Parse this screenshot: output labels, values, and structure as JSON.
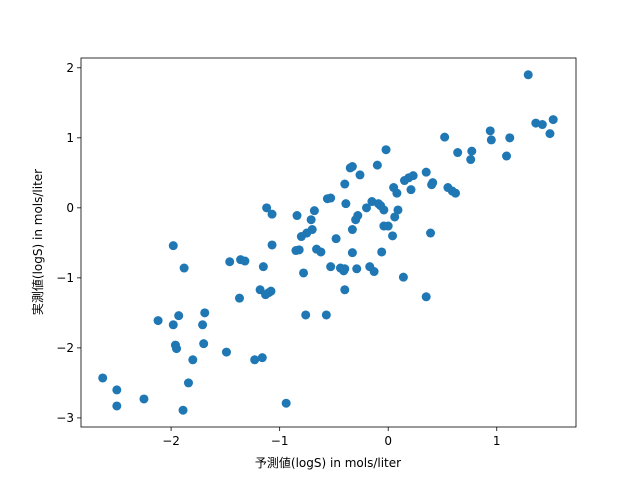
{
  "chart_data": {
    "type": "scatter",
    "xlabel": "予測値(logS) in mols/liter",
    "ylabel": "実測値(logS) in mols/liter",
    "color": "#1f77b4",
    "xlim": [
      -2.83,
      1.73
    ],
    "ylim": [
      -3.13,
      2.14
    ],
    "xticks": [
      {
        "value": -2,
        "label": "−2"
      },
      {
        "value": -1,
        "label": "−1"
      },
      0,
      1
    ],
    "yticks": [
      {
        "value": -3,
        "label": "−3"
      },
      {
        "value": -2,
        "label": "−2"
      },
      {
        "value": -1,
        "label": "−1"
      },
      0,
      1,
      2
    ],
    "x": [
      1.29,
      1.52,
      1.36,
      1.42,
      1.49,
      0.94,
      1.12,
      0.95,
      0.52,
      0.77,
      0.64,
      1.09,
      0.76,
      -0.02,
      -0.1,
      -0.33,
      -0.35,
      -0.26,
      0.35,
      0.19,
      0.23,
      0.41,
      0.4,
      0.55,
      0.59,
      0.62,
      0.15,
      0.05,
      0.08,
      0.21,
      -0.4,
      -0.53,
      -0.56,
      -0.39,
      -0.15,
      -0.07,
      -0.04,
      -0.09,
      0.09,
      -0.2,
      -0.68,
      -0.84,
      -0.28,
      -0.3,
      -0.71,
      -1.12,
      -1.07,
      0.06,
      -0.04,
      0.0,
      -0.33,
      -0.7,
      -0.75,
      -0.8,
      0.04,
      0.39,
      -0.48,
      -1.07,
      -1.98,
      -0.82,
      -0.85,
      -0.66,
      -0.62,
      -0.33,
      -0.06,
      -1.46,
      -1.36,
      -1.32,
      -1.88,
      -1.15,
      -0.53,
      -0.44,
      -0.4,
      -0.29,
      -0.17,
      -0.13,
      -0.41,
      -0.78,
      0.14,
      -1.18,
      -1.1,
      -1.08,
      -1.13,
      -0.4,
      -1.37,
      0.35,
      -1.69,
      -1.93,
      -0.76,
      -0.57,
      -2.12,
      -1.98,
      -1.71,
      -1.7,
      -1.96,
      -1.95,
      -1.49,
      -1.8,
      -1.16,
      -1.23,
      -2.63,
      -2.5,
      -2.5,
      -2.25,
      -1.84,
      -1.89,
      -0.94
    ],
    "y": [
      1.9,
      1.26,
      1.21,
      1.19,
      1.06,
      1.1,
      1.0,
      0.97,
      1.01,
      0.81,
      0.79,
      0.74,
      0.69,
      0.83,
      0.61,
      0.59,
      0.57,
      0.47,
      0.51,
      0.43,
      0.46,
      0.36,
      0.33,
      0.29,
      0.24,
      0.21,
      0.39,
      0.29,
      0.21,
      0.26,
      0.34,
      0.14,
      0.13,
      0.06,
      0.09,
      0.03,
      -0.03,
      0.06,
      -0.03,
      0.0,
      -0.04,
      -0.11,
      -0.11,
      -0.17,
      -0.17,
      0.0,
      -0.09,
      -0.13,
      -0.26,
      -0.26,
      -0.31,
      -0.31,
      -0.36,
      -0.41,
      -0.4,
      -0.36,
      -0.44,
      -0.53,
      -0.54,
      -0.6,
      -0.61,
      -0.59,
      -0.63,
      -0.64,
      -0.63,
      -0.77,
      -0.74,
      -0.76,
      -0.86,
      -0.84,
      -0.84,
      -0.86,
      -0.87,
      -0.87,
      -0.84,
      -0.91,
      -0.9,
      -0.93,
      -0.99,
      -1.17,
      -1.21,
      -1.19,
      -1.24,
      -1.17,
      -1.29,
      -1.27,
      -1.5,
      -1.54,
      -1.53,
      -1.53,
      -1.61,
      -1.67,
      -1.67,
      -1.94,
      -1.96,
      -2.01,
      -2.06,
      -2.17,
      -2.14,
      -2.17,
      -2.43,
      -2.6,
      -2.83,
      -2.73,
      -2.5,
      -2.89,
      -2.79
    ]
  }
}
